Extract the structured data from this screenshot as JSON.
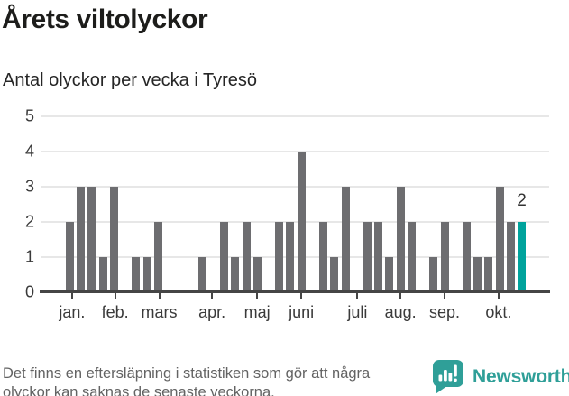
{
  "chart_data": {
    "type": "bar",
    "title": "Årets viltolyckor",
    "subtitle": "Antal olyckor per vecka i Tyresö",
    "x_unit": "vecka",
    "start_week": 1,
    "values": [
      2,
      3,
      3,
      1,
      3,
      0,
      1,
      1,
      2,
      0,
      0,
      0,
      1,
      0,
      2,
      1,
      2,
      1,
      0,
      2,
      2,
      4,
      0,
      2,
      1,
      3,
      0,
      2,
      2,
      1,
      3,
      2,
      0,
      1,
      2,
      0,
      2,
      1,
      1,
      3,
      2,
      2
    ],
    "highlight_last": true,
    "last_value_label": "2",
    "ylim": [
      0,
      5
    ],
    "yticks": [
      0,
      1,
      2,
      3,
      4,
      5
    ],
    "grid": "horizontal",
    "legend": "none",
    "x_ticks": [
      {
        "label": "jan.",
        "week": 1.2
      },
      {
        "label": "feb.",
        "week": 5.1
      },
      {
        "label": "mars",
        "week": 9.1
      },
      {
        "label": "apr.",
        "week": 13.9
      },
      {
        "label": "maj",
        "week": 18
      },
      {
        "label": "juni",
        "week": 22
      },
      {
        "label": "juli",
        "week": 27.1
      },
      {
        "label": "aug.",
        "week": 31
      },
      {
        "label": "sep.",
        "week": 35
      },
      {
        "label": "okt.",
        "week": 39.9
      }
    ]
  },
  "footnote": {
    "line1": "Det finns en eftersläpning i statistiken som gör att några",
    "line2": "olyckor kan saknas de senaste veckorna."
  },
  "brand": {
    "name": "Newsworthy",
    "icon": "newsworthy-speech-bubble-bar-chart-icon"
  },
  "colors": {
    "bar": "#6d6d70",
    "accent": "#00a39c",
    "grid": "#e7e7e7",
    "axis_line": "#454545",
    "axis_text": "#3a3a3a",
    "title_text": "#1d1d1b",
    "footnote_text": "#636363",
    "brand_teal": "#2f9f98",
    "background": "#ffffff"
  }
}
